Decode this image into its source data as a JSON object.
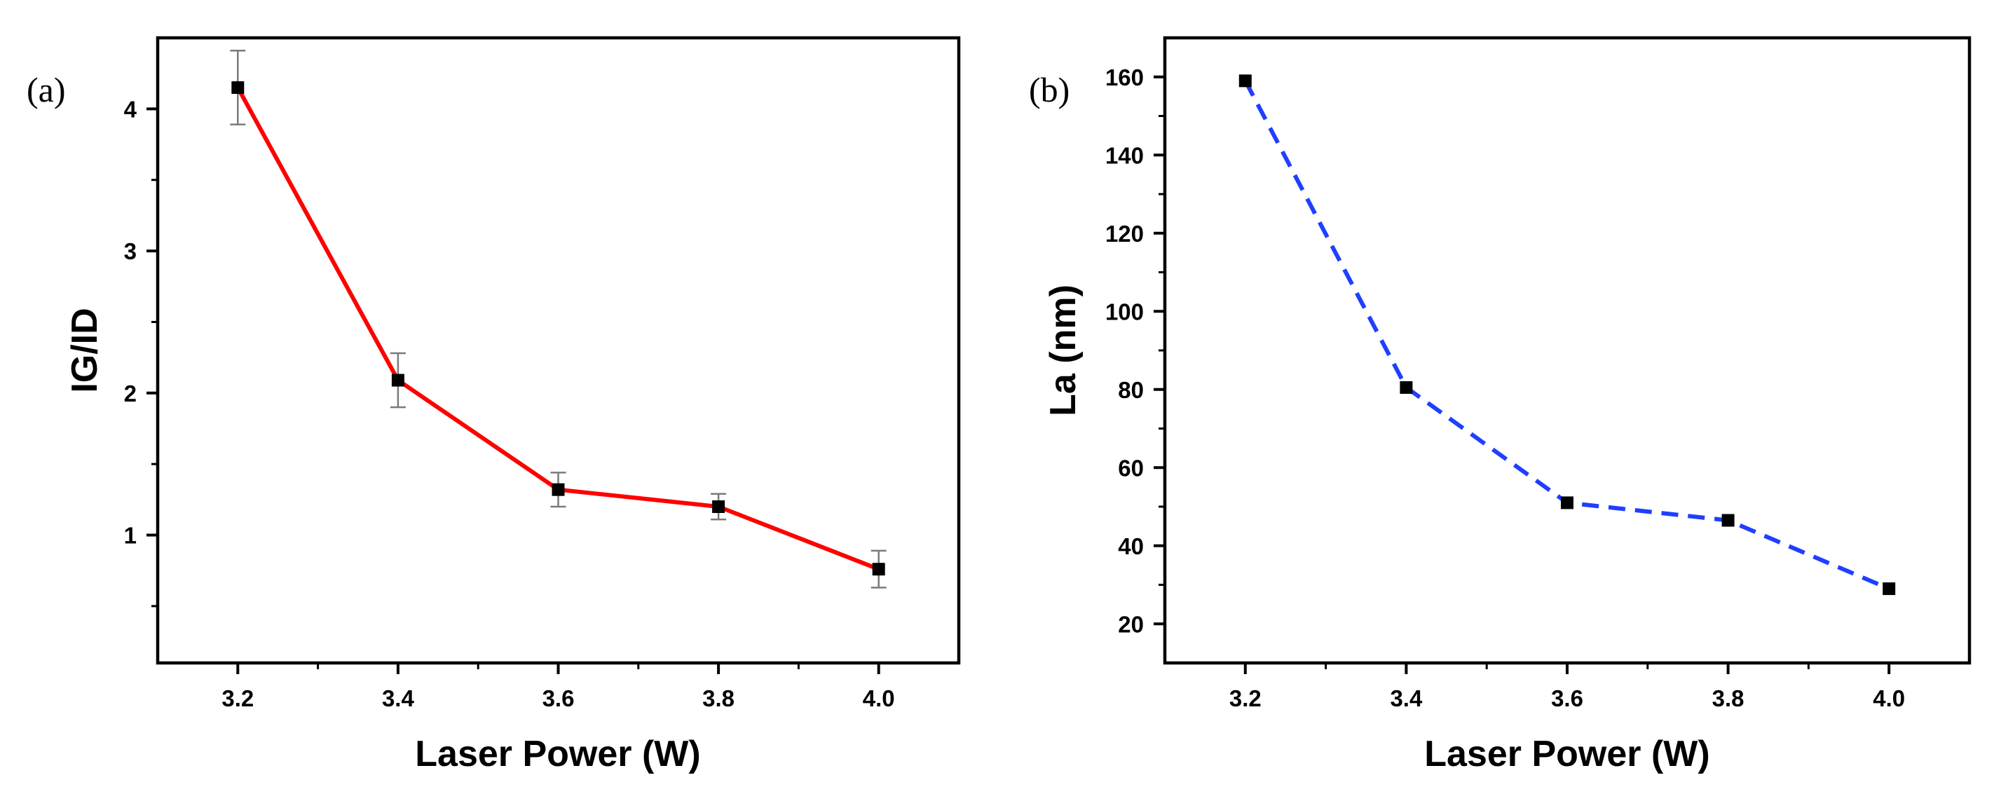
{
  "chart_data": [
    {
      "panel": "(a)",
      "type": "line",
      "title": "",
      "xlabel": "Laser Power (W)",
      "ylabel": "IG/ID",
      "x": [
        3.2,
        3.4,
        3.6,
        3.8,
        4.0
      ],
      "xticks": [
        "3.2",
        "3.4",
        "3.6",
        "3.8",
        "4.0"
      ],
      "yticks": [
        "1",
        "2",
        "3",
        "4"
      ],
      "xlim": [
        3.1,
        4.1
      ],
      "ylim": [
        0.1,
        4.5
      ],
      "series": [
        {
          "name": "IG/ID",
          "values": [
            4.15,
            2.09,
            1.32,
            1.2,
            0.76
          ],
          "error": [
            0.26,
            0.19,
            0.12,
            0.09,
            0.13
          ],
          "line_color": "#ff0000",
          "line_style": "solid",
          "marker": "square",
          "marker_color": "#000000"
        }
      ]
    },
    {
      "panel": "(b)",
      "type": "line",
      "title": "",
      "xlabel": "Laser Power (W)",
      "ylabel": "La (nm)",
      "x": [
        3.2,
        3.4,
        3.6,
        3.8,
        4.0
      ],
      "xticks": [
        "3.2",
        "3.4",
        "3.6",
        "3.8",
        "4.0"
      ],
      "yticks": [
        "20",
        "40",
        "60",
        "80",
        "100",
        "120",
        "140",
        "160"
      ],
      "xlim": [
        3.1,
        4.1
      ],
      "ylim": [
        10,
        170
      ],
      "series": [
        {
          "name": "La",
          "values": [
            159,
            80.5,
            51,
            46.5,
            29
          ],
          "line_color": "#1f3fff",
          "line_style": "dashed",
          "marker": "square",
          "marker_color": "#000000"
        }
      ]
    }
  ]
}
